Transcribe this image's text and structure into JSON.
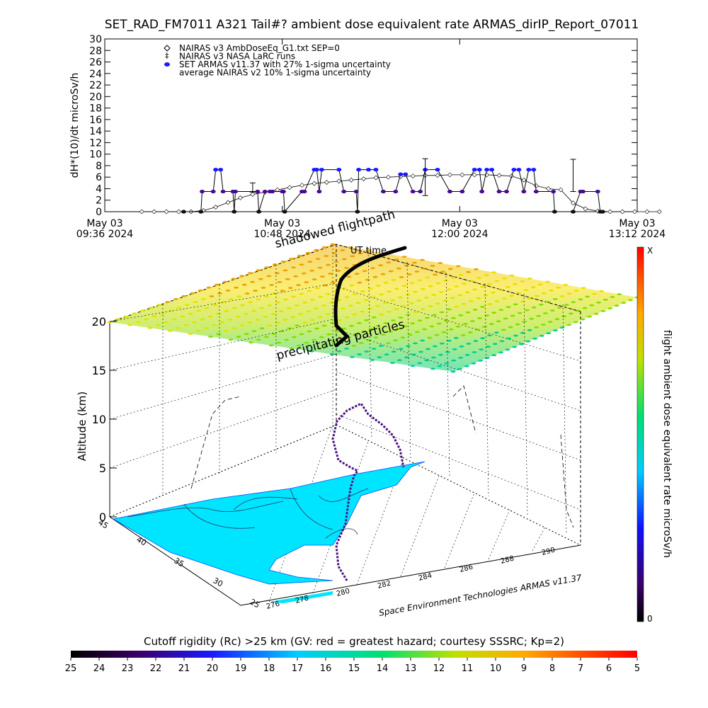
{
  "title": "SET_RAD_FM7011  A321 Tail#? ambient dose equivalent rate ARMAS_dirIP_Report_07011",
  "chart_data": [
    {
      "type": "line",
      "ylabel": "dH*(10)/dt microSv/h",
      "ylim": [
        0,
        30
      ],
      "yticks": [
        "0",
        "2",
        "4",
        "6",
        "8",
        "10",
        "12",
        "14",
        "16",
        "18",
        "20",
        "22",
        "24",
        "26",
        "28",
        "30"
      ],
      "xticks": [
        {
          "date": "May 03",
          "time": "09:36 2024"
        },
        {
          "date": "May 03",
          "time": "10:48 2024"
        },
        {
          "date": "May 03",
          "time": "12:00 2024"
        },
        {
          "date": "May 03",
          "time": "13:12 2024"
        }
      ],
      "legend": [
        {
          "label": "NAIRAS v3 AmbDoseEq_G1.txt SEP=0",
          "symbol": "diamond"
        },
        {
          "label": "NAIRAS v3 NASA LaRC runs",
          "symbol": "plus"
        },
        {
          "label": "SET ARMAS v11.37 with 27% 1-sigma uncertainty",
          "symbol": "dot"
        },
        {
          "label": "average NAIRAS v2 10% 1-sigma uncertainty",
          "symbol": "none"
        }
      ],
      "legend_placement": "top-left",
      "series": [
        {
          "name": "NAIRAS v3 AmbDoseEq_G1.txt SEP=0",
          "x_minutes": [
            15,
            20,
            25,
            30,
            35,
            40,
            45,
            50,
            55,
            60,
            65,
            70,
            75,
            80,
            85,
            90,
            95,
            100,
            105,
            110,
            115,
            120,
            125,
            130,
            135,
            140,
            145,
            150,
            155,
            160,
            165,
            170,
            175,
            180,
            185,
            190,
            195,
            200,
            205,
            210,
            215,
            220,
            225
          ],
          "values": [
            0,
            0,
            0,
            0,
            0,
            0.2,
            0.8,
            1.6,
            2.4,
            3.0,
            3.4,
            3.8,
            4.2,
            4.6,
            4.9,
            5.1,
            5.3,
            5.5,
            5.7,
            5.9,
            6.0,
            6.1,
            6.2,
            6.3,
            6.3,
            6.4,
            6.4,
            6.4,
            6.4,
            6.3,
            6.2,
            5.5,
            4.5,
            4.0,
            3.8,
            1.5,
            0.5,
            0.1,
            0,
            0,
            0,
            0,
            0
          ]
        },
        {
          "name": "SET ARMAS v11.37 with 27% 1-sigma uncertainty",
          "x_minutes": [
            32,
            39,
            39.5,
            44,
            45,
            47,
            48,
            52,
            52.5,
            53,
            62,
            62.5,
            65,
            67,
            68,
            72,
            72.5,
            73,
            80,
            81,
            85,
            86,
            87,
            88,
            95,
            97,
            102,
            102.5,
            103,
            107,
            110,
            113,
            118,
            120,
            122,
            125,
            128,
            130,
            135,
            140,
            145,
            150,
            152,
            153,
            155,
            157,
            160,
            163,
            166,
            168,
            170,
            172,
            174,
            175,
            182,
            182.5,
            190,
            193,
            194,
            200,
            201,
            202
          ],
          "values": [
            0,
            0,
            3.5,
            3.5,
            7.3,
            7.3,
            3.5,
            3.5,
            0,
            3.5,
            3.5,
            0,
            3.5,
            3.5,
            3.5,
            3.5,
            3.5,
            0,
            3.5,
            3.5,
            7.3,
            7.3,
            3.5,
            7.3,
            7.3,
            3.5,
            3.5,
            0,
            7.3,
            7.3,
            7.3,
            3.5,
            3.5,
            6.5,
            6.5,
            3.5,
            3.5,
            7.3,
            7.3,
            3.5,
            3.5,
            7.3,
            7.3,
            3.5,
            7.3,
            7.3,
            3.5,
            3.5,
            7.3,
            7.3,
            3.5,
            7.3,
            7.3,
            3.5,
            3.5,
            0,
            0,
            3.5,
            3.5,
            3.5,
            0,
            0
          ]
        }
      ],
      "errorbars": [
        {
          "x_minutes": 60,
          "value": 4.2,
          "err": 0.8
        },
        {
          "x_minutes": 130,
          "value": 6.0,
          "err": 3.2
        },
        {
          "x_minutes": 190,
          "value": 6.3,
          "err": 2.8
        }
      ],
      "grid": false
    },
    {
      "type": "scatter",
      "title_labels": [
        "shadowed flightpath",
        "UT time",
        "precipitating particles"
      ],
      "zlabel": "Altitude (km)",
      "zticks": [
        "0",
        "5",
        "10",
        "15",
        "20"
      ],
      "lat_ticks": [
        "25",
        "30",
        "35",
        "40",
        "45"
      ],
      "lon_ticks": [
        "276",
        "278",
        "280",
        "282",
        "284",
        "286",
        "288",
        "290"
      ],
      "colorbar": {
        "label": "flight ambient dose equivalent rate microSv/h",
        "min_label": "0",
        "max_label": "X"
      },
      "credit": "Space Environment Technologies ARMAS v11.37",
      "grid": true
    },
    {
      "type": "heatmap",
      "colorbar_label": "Cutoff rigidity (Rc) >25 km (GV: red = greatest hazard; courtesy SSSRC; Kp=2)",
      "ticks": [
        "25",
        "24",
        "23",
        "22",
        "21",
        "20",
        "19",
        "18",
        "17",
        "16",
        "15",
        "14",
        "13",
        "12",
        "11",
        "10",
        "9",
        "8",
        "7",
        "6",
        "5"
      ]
    }
  ]
}
